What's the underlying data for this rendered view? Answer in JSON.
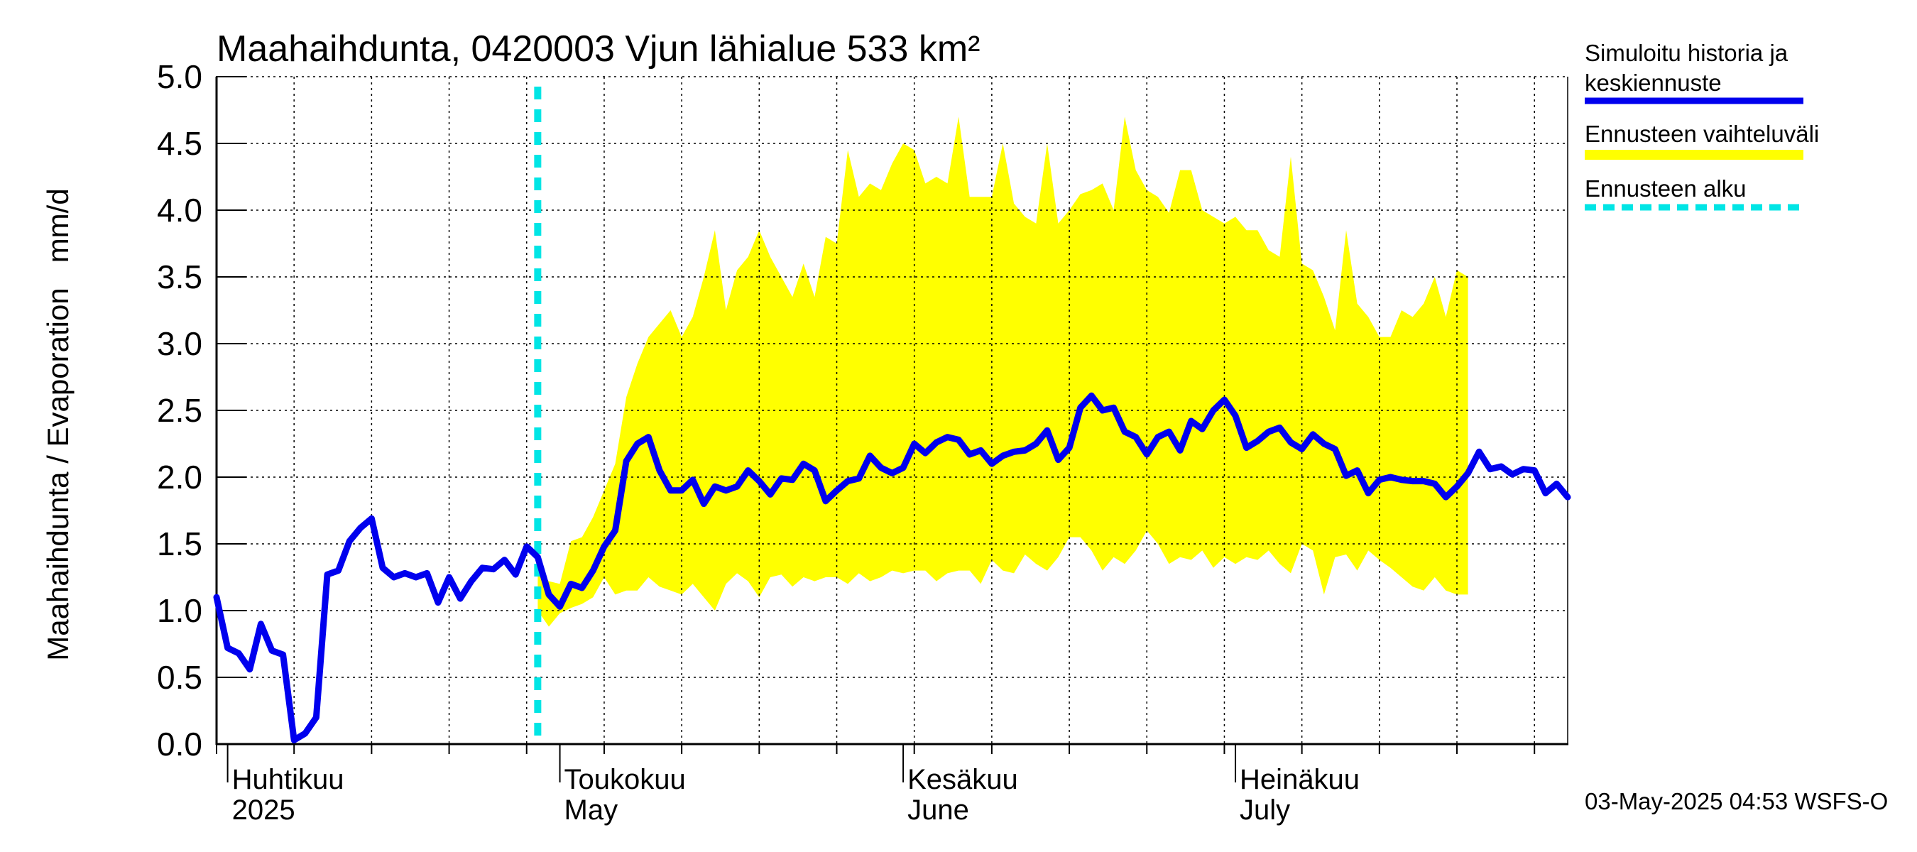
{
  "chart_data": {
    "type": "line",
    "title": "Maahaihdunta, 0420003 Vjun lähialue 533 km²",
    "ylabel": "Maahaihdunta / Evaporation   mm/d",
    "ylim": [
      0,
      5
    ],
    "yticks": [
      "0.0",
      "0.5",
      "1.0",
      "1.5",
      "2.0",
      "2.5",
      "3.0",
      "3.5",
      "4.0",
      "4.5",
      "5.0"
    ],
    "x_start": "2025-03-31",
    "x_end": "2025-07-31",
    "grid": true,
    "months": [
      {
        "date": "2025-04-01",
        "label1": "Huhtikuu",
        "label2": "2025"
      },
      {
        "date": "2025-05-01",
        "label1": "Toukokuu",
        "label2": "May"
      },
      {
        "date": "2025-06-01",
        "label1": "Kesäkuu",
        "label2": "June"
      },
      {
        "date": "2025-07-01",
        "label1": "Heinäkuu",
        "label2": "July"
      }
    ],
    "forecast_start": "2025-04-29",
    "legend_position": "right",
    "legend": [
      {
        "label_lines": [
          "Simuloitu historia ja",
          "keskiennuste"
        ],
        "color": "#0000ee",
        "style": "solid"
      },
      {
        "label_lines": [
          "Ennusteen vaihteluväli"
        ],
        "color": "#ffff00",
        "style": "solid"
      },
      {
        "label_lines": [
          "Ennusteen alku"
        ],
        "color": "#00e5e5",
        "style": "dashed"
      }
    ],
    "series": [
      {
        "name": "Simuloitu historia ja keskiennuste",
        "color": "#0000ee",
        "x_start": "2025-03-31",
        "step_days": 1,
        "values": [
          1.1,
          0.72,
          0.68,
          0.56,
          0.9,
          0.7,
          0.67,
          0.03,
          0.08,
          0.2,
          1.27,
          1.3,
          1.52,
          1.62,
          1.69,
          1.32,
          1.25,
          1.28,
          1.25,
          1.28,
          1.06,
          1.25,
          1.09,
          1.22,
          1.32,
          1.31,
          1.38,
          1.27,
          1.48,
          1.4,
          1.12,
          1.03,
          1.2,
          1.17,
          1.3,
          1.48,
          1.6,
          2.12,
          2.25,
          2.3,
          2.05,
          1.9,
          1.9,
          1.98,
          1.8,
          1.93,
          1.9,
          1.93,
          2.05,
          1.97,
          1.87,
          1.99,
          1.98,
          2.1,
          2.05,
          1.82,
          1.9,
          1.97,
          1.99,
          2.16,
          2.07,
          2.03,
          2.07,
          2.25,
          2.18,
          2.26,
          2.3,
          2.28,
          2.17,
          2.2,
          2.1,
          2.16,
          2.19,
          2.2,
          2.25,
          2.35,
          2.13,
          2.22,
          2.52,
          2.61,
          2.5,
          2.52,
          2.34,
          2.3,
          2.17,
          2.3,
          2.34,
          2.2,
          2.42,
          2.36,
          2.5,
          2.58,
          2.46,
          2.22,
          2.27,
          2.34,
          2.37,
          2.26,
          2.21,
          2.32,
          2.25,
          2.21,
          2.01,
          2.05,
          1.88,
          1.98,
          2.0,
          1.98,
          1.97,
          1.97,
          1.95,
          1.85,
          1.93,
          2.03,
          2.19,
          2.06,
          2.08,
          2.02,
          2.06,
          2.05,
          1.88,
          1.95,
          1.85
        ]
      },
      {
        "name": "Ennusteen vaihteluväli",
        "color": "#ffff00",
        "x_start": "2025-04-29",
        "step_days": 1,
        "upper": [
          1.32,
          1.22,
          1.2,
          1.52,
          1.55,
          1.7,
          1.9,
          2.1,
          2.6,
          2.85,
          3.05,
          3.15,
          3.25,
          3.05,
          3.2,
          3.5,
          3.85,
          3.25,
          3.55,
          3.65,
          3.85,
          3.65,
          3.5,
          3.35,
          3.6,
          3.35,
          3.8,
          3.75,
          4.45,
          4.1,
          4.2,
          4.15,
          4.35,
          4.5,
          4.45,
          4.2,
          4.25,
          4.2,
          4.7,
          4.1,
          4.1,
          4.1,
          4.5,
          4.05,
          3.95,
          3.9,
          4.5,
          3.9,
          4.0,
          4.12,
          4.15,
          4.2,
          4.0,
          4.7,
          4.3,
          4.15,
          4.1,
          3.98,
          4.3,
          4.3,
          4.0,
          3.95,
          3.9,
          3.95,
          3.85,
          3.85,
          3.7,
          3.65,
          4.4,
          3.6,
          3.55,
          3.35,
          3.1,
          3.85,
          3.3,
          3.2,
          3.05,
          3.05,
          3.25,
          3.2,
          3.3,
          3.5,
          3.2,
          3.55,
          3.5
        ],
        "lower": [
          1.0,
          0.88,
          0.98,
          1.02,
          1.05,
          1.1,
          1.25,
          1.12,
          1.15,
          1.15,
          1.25,
          1.18,
          1.15,
          1.12,
          1.2,
          1.1,
          1.0,
          1.2,
          1.28,
          1.22,
          1.1,
          1.25,
          1.27,
          1.18,
          1.25,
          1.22,
          1.25,
          1.25,
          1.2,
          1.28,
          1.22,
          1.25,
          1.3,
          1.28,
          1.3,
          1.3,
          1.22,
          1.28,
          1.3,
          1.3,
          1.2,
          1.38,
          1.3,
          1.28,
          1.42,
          1.35,
          1.3,
          1.4,
          1.55,
          1.55,
          1.45,
          1.3,
          1.4,
          1.35,
          1.45,
          1.6,
          1.5,
          1.35,
          1.4,
          1.38,
          1.45,
          1.32,
          1.4,
          1.35,
          1.4,
          1.38,
          1.45,
          1.35,
          1.28,
          1.5,
          1.45,
          1.12,
          1.4,
          1.42,
          1.3,
          1.45,
          1.38,
          1.32,
          1.25,
          1.18,
          1.15,
          1.25,
          1.15,
          1.12,
          1.12
        ]
      },
      {
        "name": "Ennusteen alku",
        "color": "#00e5e5",
        "x": "2025-04-29"
      }
    ],
    "footer": "03-May-2025 04:53 WSFS-O"
  }
}
